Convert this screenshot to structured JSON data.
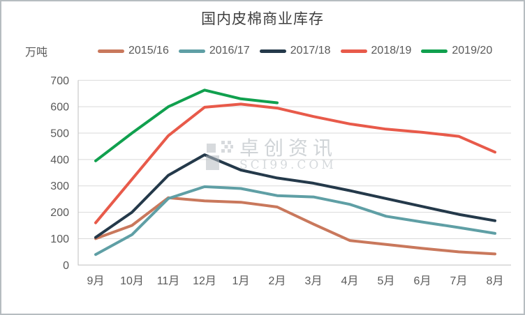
{
  "watermark": {
    "brand": "卓创资讯",
    "url": "SCI99.COM"
  },
  "style": {
    "grid_color": "#d9d9d9",
    "axis_color": "#bfbfbf",
    "tick_label_color": "#595959",
    "title_color": "#3f3f3f",
    "watermark_color": "#aab1b8"
  },
  "chart_data": {
    "type": "line",
    "title": "国内皮棉商业库存",
    "ylabel": "万吨",
    "xlabel": "",
    "categories": [
      "9月",
      "10月",
      "11月",
      "12月",
      "1月",
      "2月",
      "3月",
      "4月",
      "5月",
      "6月",
      "7月",
      "8月"
    ],
    "ylim": [
      0,
      700
    ],
    "y_tick_step": 100,
    "grid": "horizontal",
    "legend_position": "top",
    "series": [
      {
        "name": "2015/16",
        "color": "#c9785c",
        "values": [
          100,
          150,
          255,
          243,
          238,
          220,
          155,
          93,
          78,
          63,
          50,
          42
        ]
      },
      {
        "name": "2016/17",
        "color": "#5f9fa5",
        "values": [
          40,
          115,
          252,
          297,
          290,
          263,
          258,
          230,
          185,
          163,
          142,
          120
        ]
      },
      {
        "name": "2017/18",
        "color": "#24394a",
        "values": [
          105,
          200,
          340,
          418,
          360,
          330,
          310,
          282,
          252,
          222,
          192,
          168
        ]
      },
      {
        "name": "2018/19",
        "color": "#e85a4a",
        "values": [
          160,
          325,
          490,
          598,
          610,
          595,
          563,
          535,
          515,
          503,
          488,
          428
        ]
      },
      {
        "name": "2019/20",
        "color": "#10a04e",
        "values": [
          395,
          500,
          600,
          663,
          630,
          615,
          null,
          null,
          null,
          null,
          null,
          null
        ]
      }
    ]
  }
}
